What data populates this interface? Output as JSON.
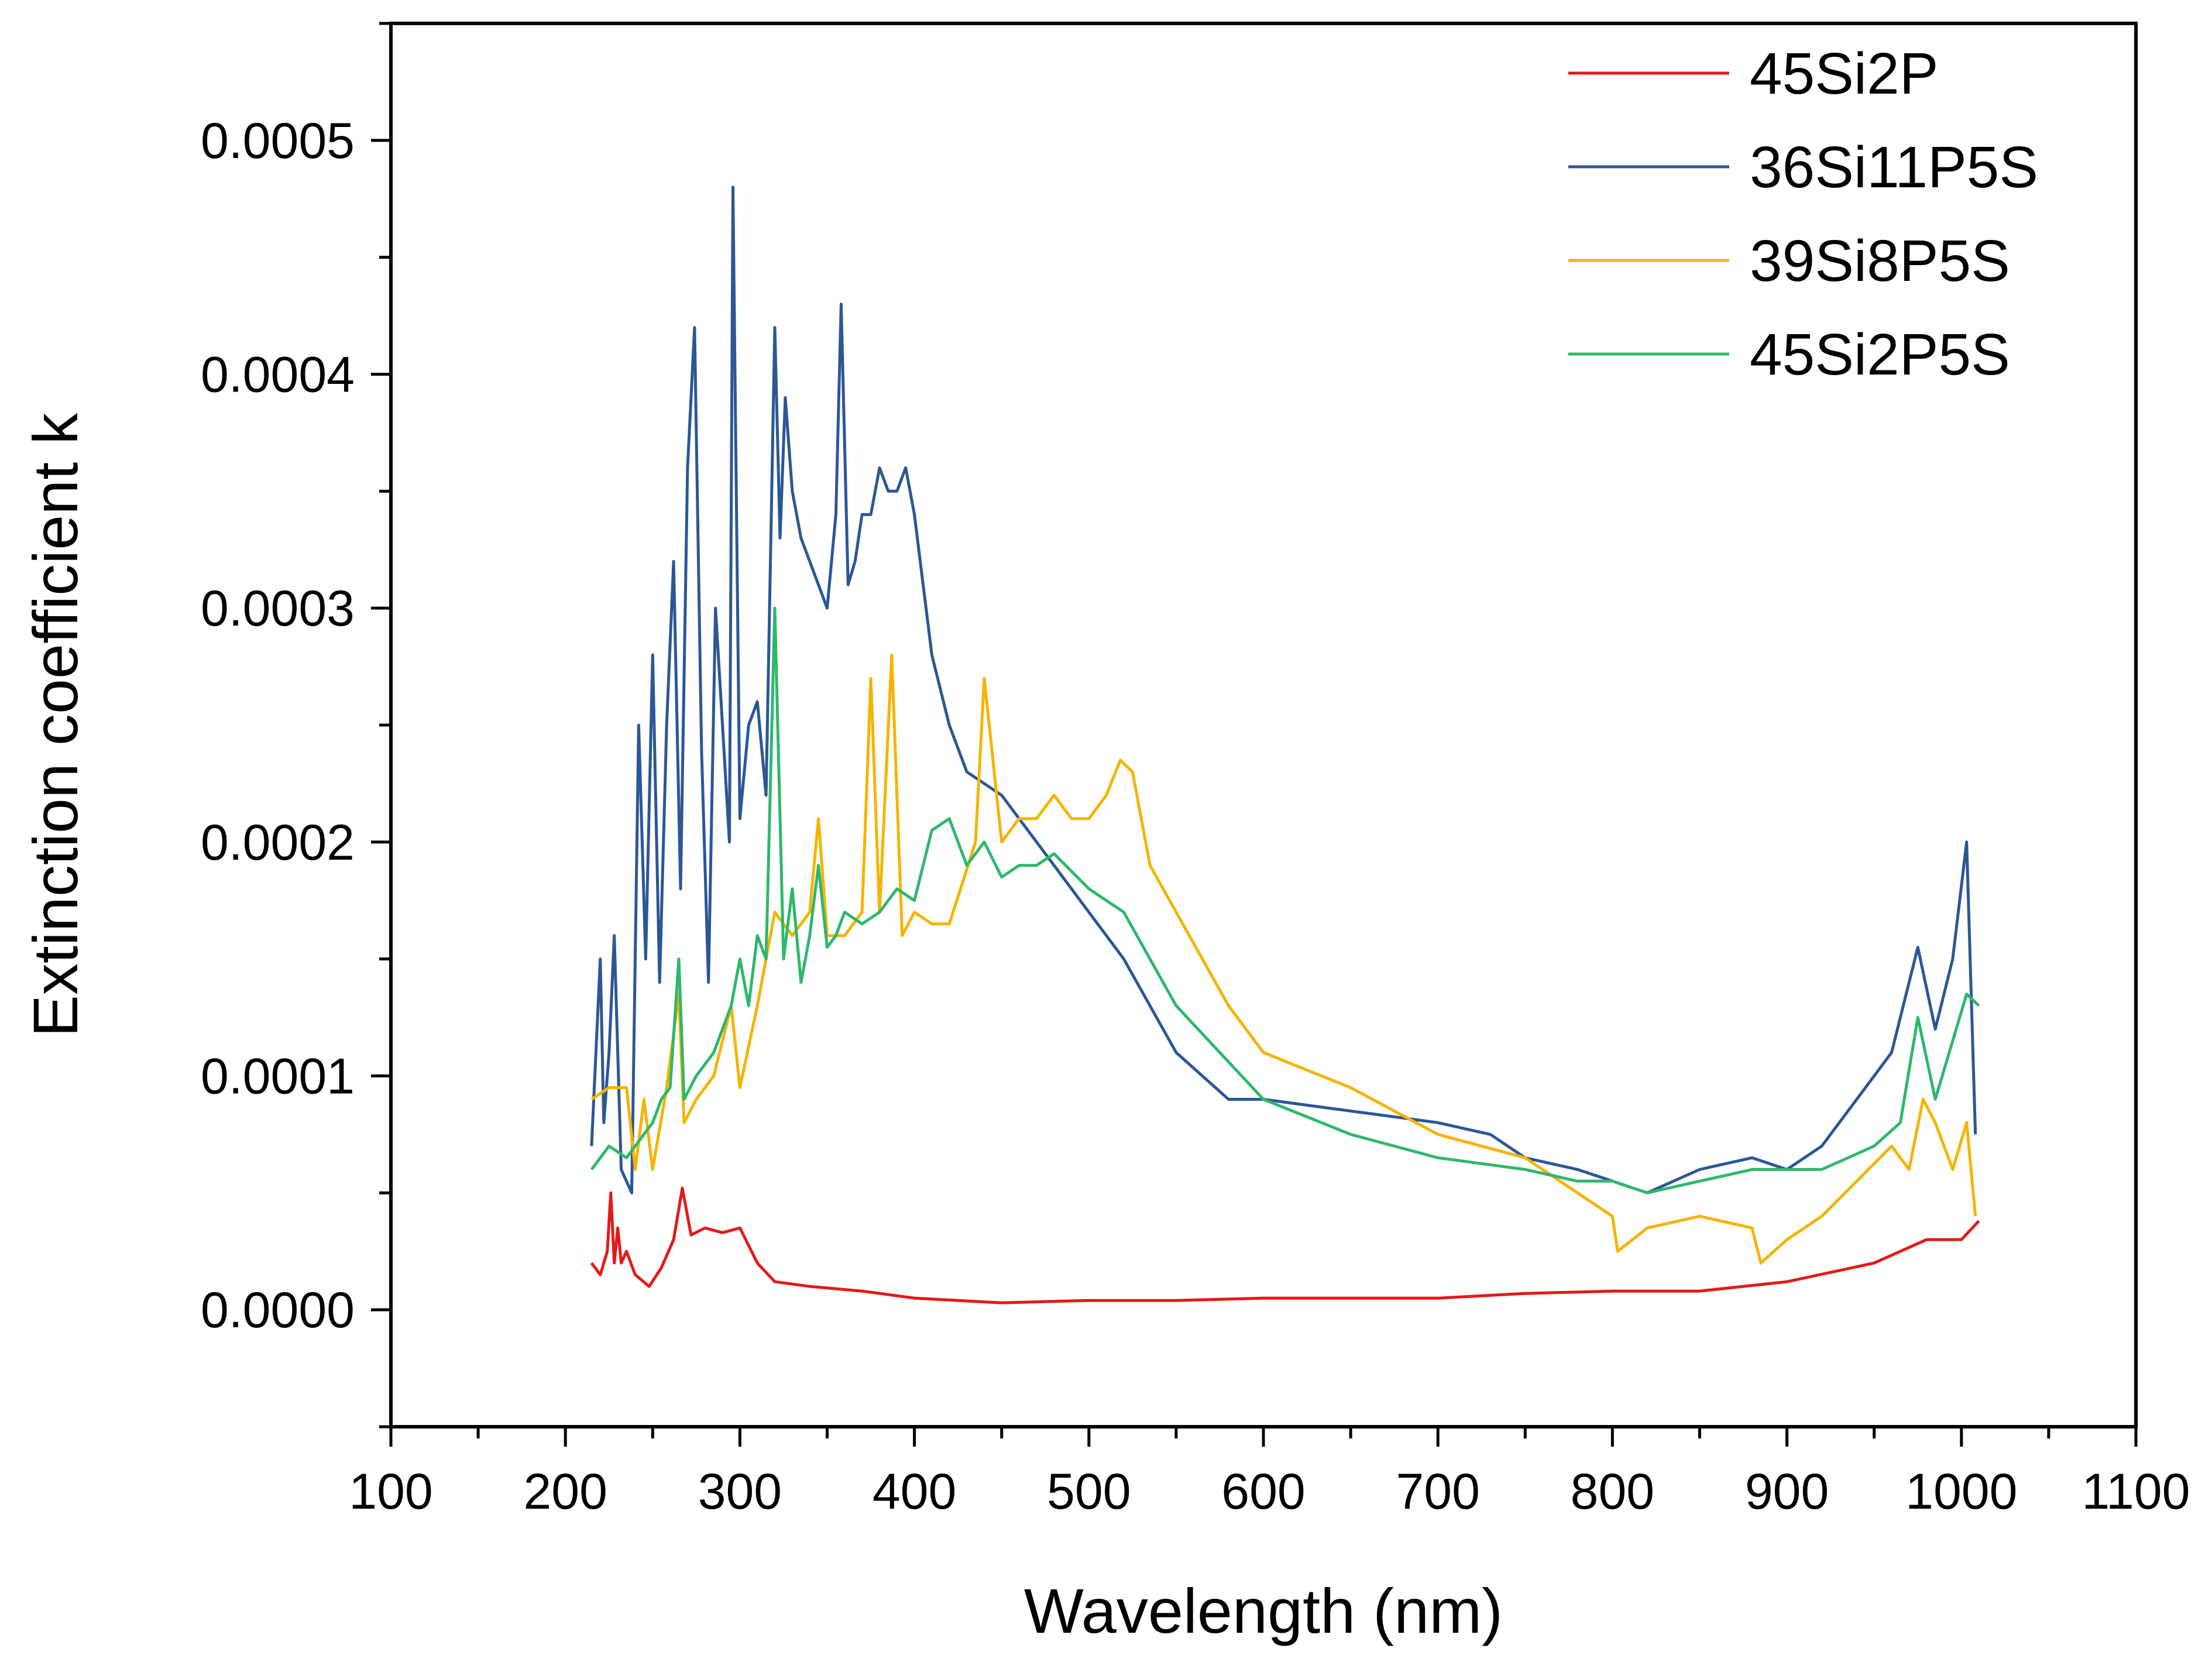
{
  "chart_data": {
    "type": "line",
    "title": "",
    "xlabel": "Wavelength (nm)",
    "ylabel": "Extinction coefficient k",
    "xlim": [
      100,
      1100
    ],
    "ylim": [
      -5e-05,
      0.00055
    ],
    "x_ticks": [
      "100",
      "200",
      "300",
      "400",
      "500",
      "600",
      "700",
      "800",
      "900",
      "1000",
      "1100"
    ],
    "y_ticks": [
      "0.0000",
      "0.0001",
      "0.0002",
      "0.0003",
      "0.0004",
      "0.0005"
    ],
    "grid": false,
    "legend_position": "top-right",
    "series": [
      {
        "name": "45Si2P",
        "color": "#e41a1a",
        "x": [
          215,
          220,
          224,
          226,
          228,
          230,
          232,
          235,
          240,
          248,
          255,
          262,
          267,
          272,
          280,
          290,
          300,
          310,
          320,
          340,
          370,
          400,
          450,
          500,
          550,
          600,
          650,
          700,
          750,
          800,
          850,
          900,
          950,
          980,
          1000,
          1010
        ],
        "y": [
          2e-05,
          1.5e-05,
          2.5e-05,
          5e-05,
          2e-05,
          3.5e-05,
          2e-05,
          2.5e-05,
          1.5e-05,
          1e-05,
          1.8e-05,
          3e-05,
          5.2e-05,
          3.2e-05,
          3.5e-05,
          3.3e-05,
          3.5e-05,
          2e-05,
          1.2e-05,
          1e-05,
          8e-06,
          5e-06,
          3e-06,
          4e-06,
          4e-06,
          5e-06,
          5e-06,
          5e-06,
          7e-06,
          8e-06,
          8e-06,
          1.2e-05,
          2e-05,
          3e-05,
          3e-05,
          3.8e-05
        ]
      },
      {
        "name": "36Si11P5S",
        "color": "#2b5797",
        "x": [
          215,
          220,
          222,
          225,
          228,
          232,
          238,
          242,
          246,
          250,
          254,
          258,
          262,
          266,
          270,
          274,
          278,
          282,
          286,
          290,
          294,
          296,
          300,
          305,
          310,
          315,
          320,
          323,
          326,
          330,
          335,
          340,
          345,
          350,
          355,
          358,
          362,
          366,
          370,
          375,
          380,
          385,
          390,
          395,
          400,
          410,
          420,
          430,
          450,
          480,
          500,
          520,
          550,
          580,
          600,
          650,
          700,
          730,
          750,
          780,
          800,
          820,
          850,
          880,
          900,
          920,
          940,
          960,
          975,
          985,
          995,
          1003,
          1008
        ],
        "y": [
          7e-05,
          0.00015,
          8e-05,
          0.00011,
          0.00016,
          6e-05,
          5e-05,
          0.00025,
          0.00015,
          0.00028,
          0.00014,
          0.00025,
          0.00032,
          0.00018,
          0.00036,
          0.00042,
          0.00024,
          0.00014,
          0.0003,
          0.00025,
          0.0002,
          0.00048,
          0.00021,
          0.00025,
          0.00026,
          0.00022,
          0.00042,
          0.00033,
          0.00039,
          0.00035,
          0.00033,
          0.00032,
          0.00031,
          0.0003,
          0.00034,
          0.00043,
          0.00031,
          0.00032,
          0.00034,
          0.00034,
          0.00036,
          0.00035,
          0.00035,
          0.00036,
          0.00034,
          0.00028,
          0.00025,
          0.00023,
          0.00022,
          0.00019,
          0.00017,
          0.00015,
          0.00011,
          9e-05,
          9e-05,
          8.5e-05,
          8e-05,
          7.5e-05,
          6.5e-05,
          6e-05,
          5.5e-05,
          5e-05,
          6e-05,
          6.5e-05,
          6e-05,
          7e-05,
          9e-05,
          0.00011,
          0.000155,
          0.00012,
          0.00015,
          0.0002,
          7.5e-05
        ]
      },
      {
        "name": "39Si8P5S",
        "color": "#f5b400",
        "x": [
          215,
          225,
          235,
          240,
          245,
          250,
          258,
          265,
          268,
          275,
          285,
          295,
          300,
          310,
          320,
          330,
          340,
          345,
          350,
          360,
          370,
          375,
          380,
          387,
          393,
          400,
          410,
          420,
          435,
          440,
          450,
          460,
          470,
          480,
          490,
          500,
          510,
          518,
          525,
          535,
          550,
          580,
          600,
          650,
          700,
          750,
          800,
          803,
          820,
          850,
          880,
          885,
          900,
          920,
          940,
          960,
          970,
          978,
          985,
          995,
          1003,
          1008
        ],
        "y": [
          9e-05,
          9.5e-05,
          9.5e-05,
          6e-05,
          9e-05,
          6e-05,
          9.5e-05,
          0.000135,
          8e-05,
          9e-05,
          0.0001,
          0.00013,
          9.5e-05,
          0.00013,
          0.00017,
          0.00016,
          0.00017,
          0.00021,
          0.00016,
          0.00016,
          0.00017,
          0.00027,
          0.00017,
          0.00028,
          0.00016,
          0.00017,
          0.000165,
          0.000165,
          0.0002,
          0.00027,
          0.0002,
          0.00021,
          0.00021,
          0.00022,
          0.00021,
          0.00021,
          0.00022,
          0.000235,
          0.00023,
          0.00019,
          0.00017,
          0.00013,
          0.00011,
          9.5e-05,
          7.5e-05,
          6.5e-05,
          4e-05,
          2.5e-05,
          3.5e-05,
          4e-05,
          3.5e-05,
          2e-05,
          3e-05,
          4e-05,
          5.5e-05,
          7e-05,
          6e-05,
          9e-05,
          8e-05,
          6e-05,
          8e-05,
          4e-05
        ]
      },
      {
        "name": "45Si2P5S",
        "color": "#2db86b",
        "x": [
          215,
          225,
          235,
          240,
          245,
          250,
          255,
          260,
          265,
          268,
          275,
          285,
          295,
          300,
          305,
          310,
          315,
          320,
          325,
          330,
          335,
          340,
          345,
          350,
          355,
          360,
          370,
          380,
          390,
          400,
          410,
          420,
          430,
          440,
          450,
          460,
          470,
          480,
          500,
          520,
          550,
          600,
          650,
          700,
          750,
          780,
          800,
          820,
          850,
          880,
          900,
          920,
          950,
          965,
          975,
          985,
          995,
          1003,
          1010
        ],
        "y": [
          6e-05,
          7e-05,
          6.5e-05,
          7e-05,
          7.5e-05,
          8e-05,
          9e-05,
          9.5e-05,
          0.00015,
          9e-05,
          0.0001,
          0.00011,
          0.00013,
          0.00015,
          0.00013,
          0.00016,
          0.00015,
          0.0003,
          0.00015,
          0.00018,
          0.00014,
          0.00016,
          0.00019,
          0.000155,
          0.00016,
          0.00017,
          0.000165,
          0.00017,
          0.00018,
          0.000175,
          0.000205,
          0.00021,
          0.00019,
          0.0002,
          0.000185,
          0.00019,
          0.00019,
          0.000195,
          0.00018,
          0.00017,
          0.00013,
          9e-05,
          7.5e-05,
          6.5e-05,
          6e-05,
          5.5e-05,
          5.5e-05,
          5e-05,
          5.5e-05,
          6e-05,
          6e-05,
          6e-05,
          7e-05,
          8e-05,
          0.000125,
          9e-05,
          0.000115,
          0.000135,
          0.00013
        ]
      }
    ]
  }
}
